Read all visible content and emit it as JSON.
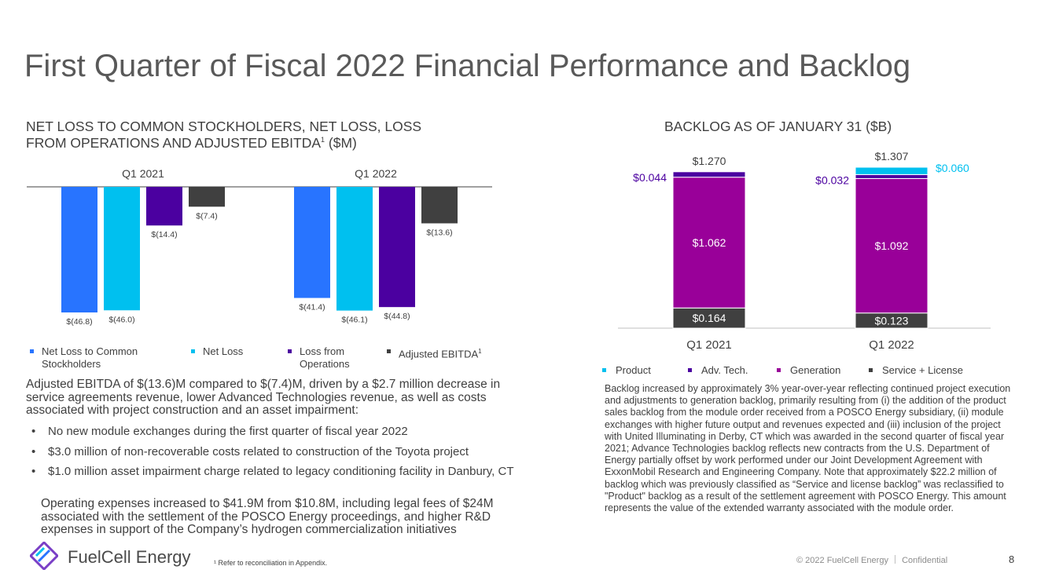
{
  "page": {
    "title": "First Quarter of Fiscal 2022 Financial Performance and Backlog",
    "logo_text": "FuelCell Energy",
    "footnote": "¹ Refer to reconciliation in Appendix.",
    "copyright": "© 2022 FuelCell Energy",
    "confidential": "Confidential",
    "page_number": "8"
  },
  "left": {
    "subtitle_line1": "NET LOSS TO COMMON STOCKHOLDERS, NET LOSS, LOSS",
    "subtitle_line2": "FROM OPERATIONS AND ADJUSTED EBITDA",
    "subtitle_sup": "1",
    "subtitle_unit": " ($M)",
    "paragraph1": "Adjusted EBITDA of $(13.6)M compared to $(7.4)M, driven by a $2.7 million decrease in service agreements revenue, lower Advanced Technologies revenue, as well as costs associated with project construction and an asset impairment:",
    "bullets": [
      "No new module exchanges during the first quarter of fiscal year 2022",
      "$3.0 million of non-recoverable costs related to construction of the Toyota project",
      "$1.0 million asset impairment charge related to legacy conditioning facility in Danbury, CT"
    ],
    "paragraph2": "Operating expenses increased to $41.9M from $10.8M, including legal fees of $24M associated with the settlement of the POSCO Energy proceedings, and higher R&D expenses in support of the Company’s hydrogen commercialization initiatives"
  },
  "right": {
    "subtitle": "BACKLOG AS OF JANUARY 31 ($B)",
    "paragraph": "Backlog increased by approximately 3% year-over-year reflecting continued project execution and adjustments to generation backlog, primarily resulting from (i) the addition of the product sales backlog from the module order received from a POSCO Energy subsidiary, (ii) module exchanges with higher future output and revenues expected and (iii) inclusion of the project with United Illuminating in Derby, CT which was awarded in the second quarter of fiscal year 2021; Advance Technologies backlog reflects new contracts from the U.S. Department of Energy partially offset by work performed under our Joint Development Agreement with ExxonMobil Research and Engineering Company. Note that approximately $22.2 million of backlog which was previously classified as “Service and license backlog” was reclassified to \"Product\" backlog as a result of the settlement agreement with POSCO Energy. This amount represents the value of the extended warranty associated with the module order."
  },
  "chart_data": [
    {
      "type": "bar",
      "categories": [
        "Q1 2021",
        "Q1 2022"
      ],
      "series": [
        {
          "name": "Net Loss to Common Stockholders",
          "values": [
            -46.8,
            -41.4
          ],
          "labels": [
            "$(46.8)",
            "$(41.4)"
          ],
          "color": "#2874ff"
        },
        {
          "name": "Net Loss",
          "values": [
            -46.0,
            -46.1
          ],
          "labels": [
            "$(46.0)",
            "$(46.1)"
          ],
          "color": "#00c0ef"
        },
        {
          "name": "Loss from Operations",
          "values": [
            -14.4,
            -44.8
          ],
          "labels": [
            "$(14.4)",
            "$(44.8)"
          ],
          "color": "#4b00a0"
        },
        {
          "name": "Adjusted EBITDA",
          "values": [
            -7.4,
            -13.6
          ],
          "labels": [
            "$(7.4)",
            "$(13.6)"
          ],
          "color": "#404040"
        }
      ],
      "legend": [
        {
          "text": "Net Loss to Common",
          "text2": "Stockholders",
          "sup": "",
          "color": "#2874ff"
        },
        {
          "text": "Net Loss",
          "text2": "",
          "sup": "",
          "color": "#00c0ef"
        },
        {
          "text": "Loss from",
          "text2": "Operations",
          "sup": "",
          "color": "#4b00a0"
        },
        {
          "text": "Adjusted EBITDA",
          "text2": "",
          "sup": "1",
          "color": "#404040"
        }
      ],
      "legend_position": "bottom",
      "grid": false
    },
    {
      "type": "bar",
      "stacked": true,
      "categories": [
        "Q1 2021",
        "Q1 2022"
      ],
      "totals": [
        "$1.270",
        "$1.307"
      ],
      "total_values": [
        1.27,
        1.307
      ],
      "series": [
        {
          "name": "Service + License",
          "values": [
            0.164,
            0.123
          ],
          "labels": [
            "$0.164",
            "$0.123"
          ],
          "color": "#404040",
          "label_color": "#ffffff"
        },
        {
          "name": "Generation",
          "values": [
            1.062,
            1.092
          ],
          "labels": [
            "$1.062",
            "$1.092"
          ],
          "color": "#990099",
          "label_color": "#ffffff"
        },
        {
          "name": "Adv. Tech.",
          "values": [
            0.044,
            0.032
          ],
          "labels": [
            "$0.044",
            "$0.032"
          ],
          "color": "#4b00a0",
          "label_color": "#4b00a0"
        },
        {
          "name": "Product",
          "values": [
            0.0,
            0.06
          ],
          "labels": [
            "",
            "$0.060"
          ],
          "color": "#00c0ef",
          "label_color": "#00c0ef"
        }
      ],
      "legend": [
        {
          "text": "Product",
          "color": "#00c0ef"
        },
        {
          "text": "Adv. Tech.",
          "color": "#4b00a0"
        },
        {
          "text": "Generation",
          "color": "#990099"
        },
        {
          "text": "Service + License",
          "color": "#404040"
        }
      ],
      "legend_position": "bottom",
      "grid": false
    }
  ]
}
